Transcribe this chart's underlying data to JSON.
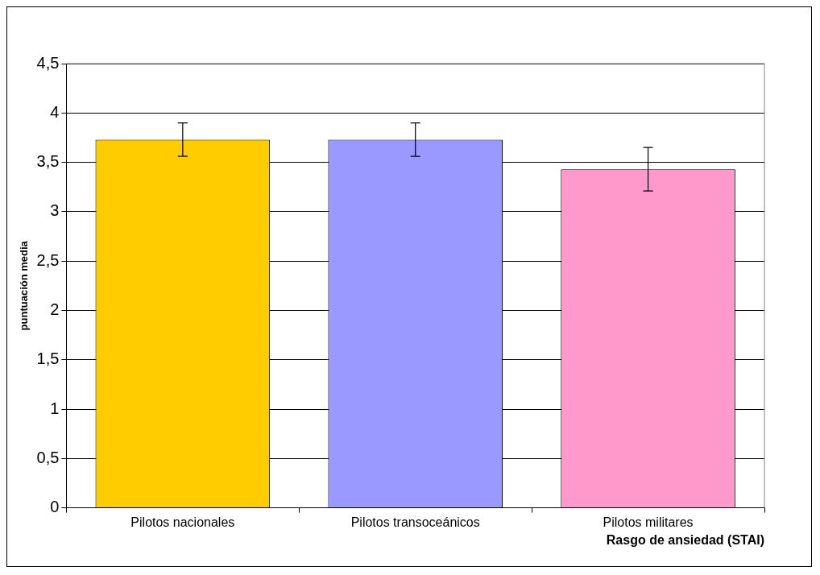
{
  "chart_data": {
    "type": "bar",
    "xlabel": "Rasgo de ansiedad (STAI)",
    "ylabel": "puntuación media",
    "categories": [
      "Pilotos nacionales",
      "Pilotos transoceánicos",
      "Pilotos militares"
    ],
    "values": [
      3.73,
      3.73,
      3.43
    ],
    "colors": [
      "#ffcc00",
      "#9999ff",
      "#ff99cc"
    ],
    "errors": [
      0.17,
      0.17,
      0.22
    ],
    "ylim": [
      0,
      4.5
    ],
    "yticks": [
      {
        "value": 0,
        "label": "0"
      },
      {
        "value": 0.5,
        "label": "0,5"
      },
      {
        "value": 1,
        "label": "1"
      },
      {
        "value": 1.5,
        "label": "1,5"
      },
      {
        "value": 2,
        "label": "2"
      },
      {
        "value": 2.5,
        "label": "2,5"
      },
      {
        "value": 3,
        "label": "3"
      },
      {
        "value": 3.5,
        "label": "3,5"
      },
      {
        "value": 4,
        "label": "4"
      },
      {
        "value": 4.5,
        "label": "4,5"
      }
    ],
    "grid": "y",
    "legend": false
  }
}
